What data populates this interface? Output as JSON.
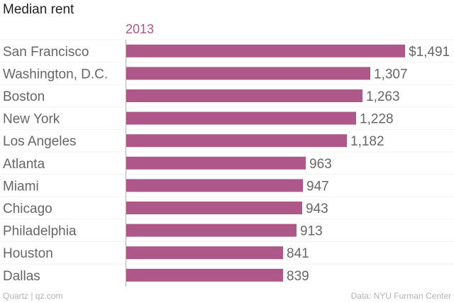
{
  "chart_data": {
    "type": "bar",
    "orientation": "horizontal",
    "title": "Median rent",
    "series_name": "2013",
    "categories": [
      "San Francisco",
      "Washington, D.C.",
      "Boston",
      "New York",
      "Los Angeles",
      "Atlanta",
      "Miami",
      "Chicago",
      "Philadelphia",
      "Houston",
      "Dallas"
    ],
    "values": [
      1491,
      1307,
      1263,
      1228,
      1182,
      963,
      947,
      943,
      913,
      841,
      839
    ],
    "value_labels": [
      "$1,491",
      "1,307",
      "1,263",
      "1,228",
      "1,182",
      "963",
      "947",
      "943",
      "913",
      "841",
      "839"
    ],
    "xlim": [
      0,
      1491
    ],
    "grid": false,
    "bar_color": "#ad5889",
    "series_color": "#ad5889"
  },
  "footer": {
    "source_left": "Quartz | qz.com",
    "source_right": "Data: NYU Furman Center"
  }
}
